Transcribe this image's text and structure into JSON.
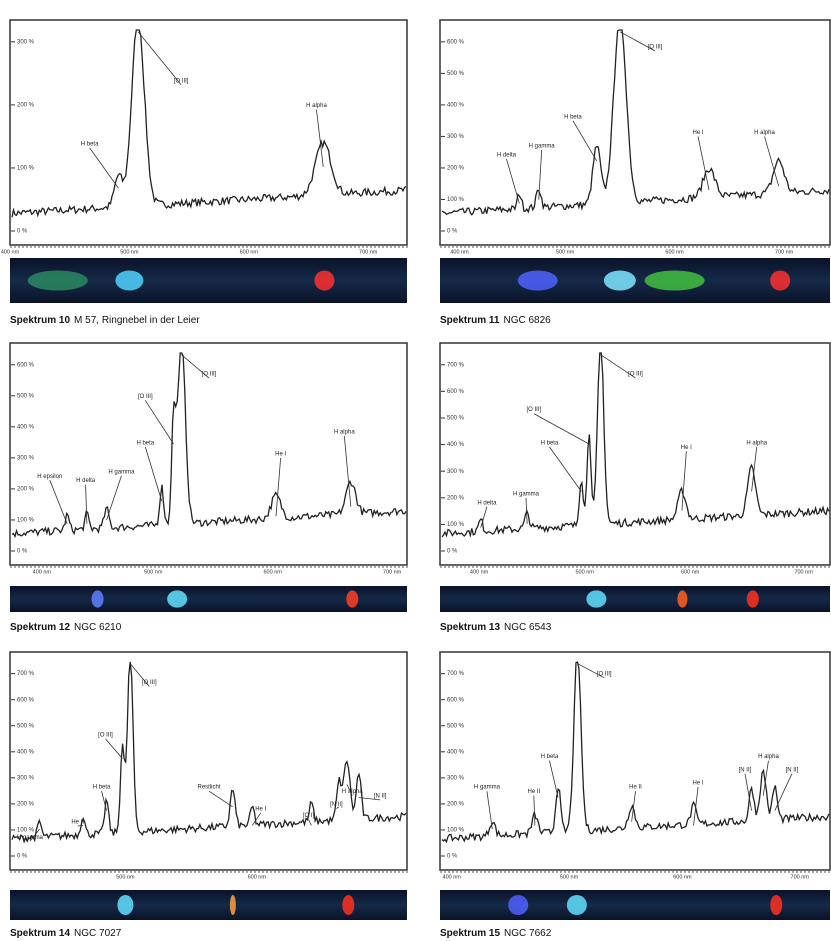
{
  "panels": [
    {
      "caption_label": "Spektrum 10",
      "caption_text": "M 57, Ringnebel in der Leier",
      "y_ticks": [
        "0 %",
        "100 %",
        "200 %",
        "300 %"
      ],
      "x_ticks": [
        "400 nm",
        "500 nm",
        "600 nm",
        "700 nm"
      ],
      "peaks": [
        "H beta",
        "[O III]",
        "H alpha"
      ]
    },
    {
      "caption_label": "Spektrum 11",
      "caption_text": "NGC 6826",
      "y_ticks": [
        "0 %",
        "100 %",
        "200 %",
        "300 %",
        "400 %",
        "500 %",
        "600 %"
      ],
      "x_ticks": [
        "400 nm",
        "500 nm",
        "600 nm",
        "700 nm"
      ],
      "peaks": [
        "H delta",
        "H gamma",
        "H beta",
        "[O III]",
        "He I",
        "H alpha"
      ]
    },
    {
      "caption_label": "Spektrum 12",
      "caption_text": "NGC 6210",
      "y_ticks": [
        "0 %",
        "100 %",
        "200 %",
        "300 %",
        "400 %",
        "500 %",
        "600 %"
      ],
      "x_ticks": [
        "400 nm",
        "500 nm",
        "600 nm",
        "700 nm"
      ],
      "peaks": [
        "H epsilon",
        "H delta",
        "H gamma",
        "H beta",
        "[O III]",
        "[O III]",
        "He I",
        "H alpha"
      ]
    },
    {
      "caption_label": "Spektrum 13",
      "caption_text": "NGC 6543",
      "y_ticks": [
        "0 %",
        "100 %",
        "200 %",
        "300 %",
        "400 %",
        "500 %",
        "600 %",
        "700 %"
      ],
      "x_ticks": [
        "400 nm",
        "500 nm",
        "600 nm",
        "700 nm"
      ],
      "peaks": [
        "H delta",
        "H gamma",
        "H beta",
        "[O III]",
        "[O III]",
        "He I",
        "H alpha"
      ]
    },
    {
      "caption_label": "Spektrum 14",
      "caption_text": "NGC 7027",
      "y_ticks": [
        "0 %",
        "100 %",
        "200 %",
        "300 %",
        "400 %",
        "500 %",
        "600 %",
        "700 %"
      ],
      "x_ticks": [
        "500 nm",
        "600 nm"
      ],
      "peaks": [
        "H gamma",
        "He II",
        "H beta",
        "[O III]",
        "[O III]",
        "Restlicht",
        "He I",
        "[O I]",
        "[N II]",
        "H alpha",
        "[N II]"
      ]
    },
    {
      "caption_label": "Spektrum 15",
      "caption_text": "NGC 7662",
      "y_ticks": [
        "0 %",
        "100 %",
        "200 %",
        "300 %",
        "400 %",
        "500 %",
        "600 %",
        "700 %"
      ],
      "x_ticks": [
        "400 nm",
        "500 nm",
        "600 nm",
        "700 nm"
      ],
      "peaks": [
        "H gamma",
        "He II",
        "H beta",
        "[O III]",
        "He II",
        "He I",
        "[N II]",
        "H alpha",
        "[N II]"
      ]
    }
  ]
}
